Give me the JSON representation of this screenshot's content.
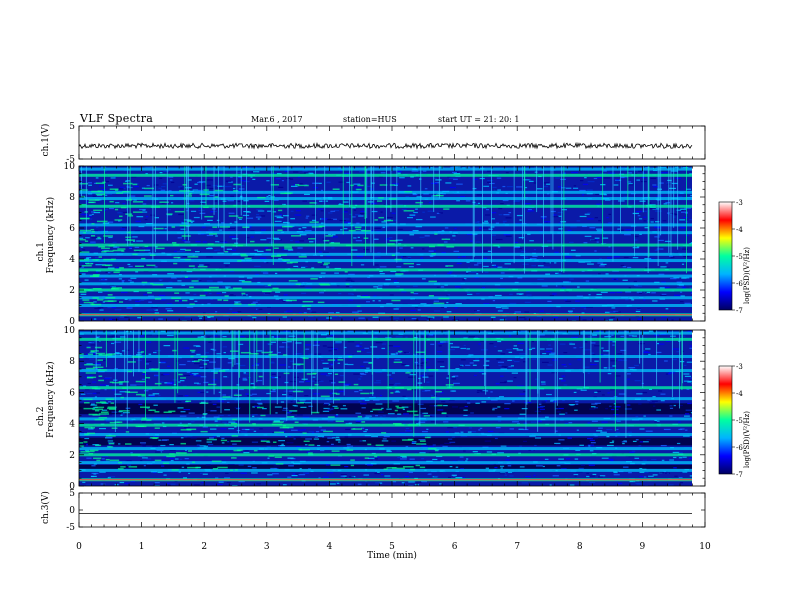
{
  "header": {
    "title": "VLF Spectra",
    "date": "Mar.6 , 2017",
    "station": "station=HUS",
    "start": "start UT = 21: 20: 1"
  },
  "chart_data": {
    "type": "heatmap",
    "xlabel": "Time (min)",
    "xlim": [
      0,
      10
    ],
    "xticks": [
      "0",
      "1",
      "2",
      "3",
      "4",
      "5",
      "6",
      "7",
      "8",
      "9",
      "10"
    ],
    "panels": [
      {
        "kind": "waveform",
        "ylabel": "ch.1(V)",
        "ylim": [
          -5,
          5
        ],
        "yticks": [
          "5",
          "-5"
        ],
        "signal": "noisy trace near -1"
      },
      {
        "kind": "spectrogram",
        "ylabel_top": "ch.1",
        "ylabel": "Frequency (kHz)",
        "ylim": [
          0,
          10
        ],
        "yticks": [
          "0",
          "2",
          "4",
          "6",
          "8",
          "10"
        ],
        "colorbar": {
          "label": "log(PSD)(V²/Hz)",
          "range": [
            -7,
            -3
          ],
          "ticks": [
            "-3",
            "-4",
            "-5",
            "-6",
            "-7"
          ]
        },
        "bright_bands_khz": [
          0.4,
          1.0,
          1.5,
          2.0,
          2.4,
          2.9,
          3.3,
          3.9,
          4.3,
          4.9,
          5.7,
          6.2,
          7.4,
          7.9,
          8.3,
          9.4,
          9.8
        ]
      },
      {
        "kind": "spectrogram",
        "ylabel_top": "ch.2",
        "ylabel": "Frequency (kHz)",
        "ylim": [
          0,
          10
        ],
        "yticks": [
          "0",
          "2",
          "4",
          "6",
          "8",
          "10"
        ],
        "colorbar": {
          "label": "log(PSD)(V²/Hz)",
          "range": [
            -7,
            -3
          ],
          "ticks": [
            "-3",
            "-4",
            "-5",
            "-6",
            "-7"
          ]
        },
        "bright_bands_khz": [
          0.4,
          1.0,
          1.5,
          2.0,
          2.4,
          3.3,
          3.9,
          4.3,
          5.6,
          6.3,
          7.4,
          8.3,
          9.4,
          9.8
        ]
      },
      {
        "kind": "waveform",
        "ylabel": "ch.3(V)",
        "ylim": [
          -5,
          5
        ],
        "yticks": [
          "5",
          "0",
          "-5"
        ],
        "signal": "flat line at -1"
      }
    ],
    "colorscale": [
      "#000060",
      "#0000ff",
      "#00b4ff",
      "#00ffa0",
      "#ffff00",
      "#ff0000",
      "#ffffff"
    ]
  }
}
